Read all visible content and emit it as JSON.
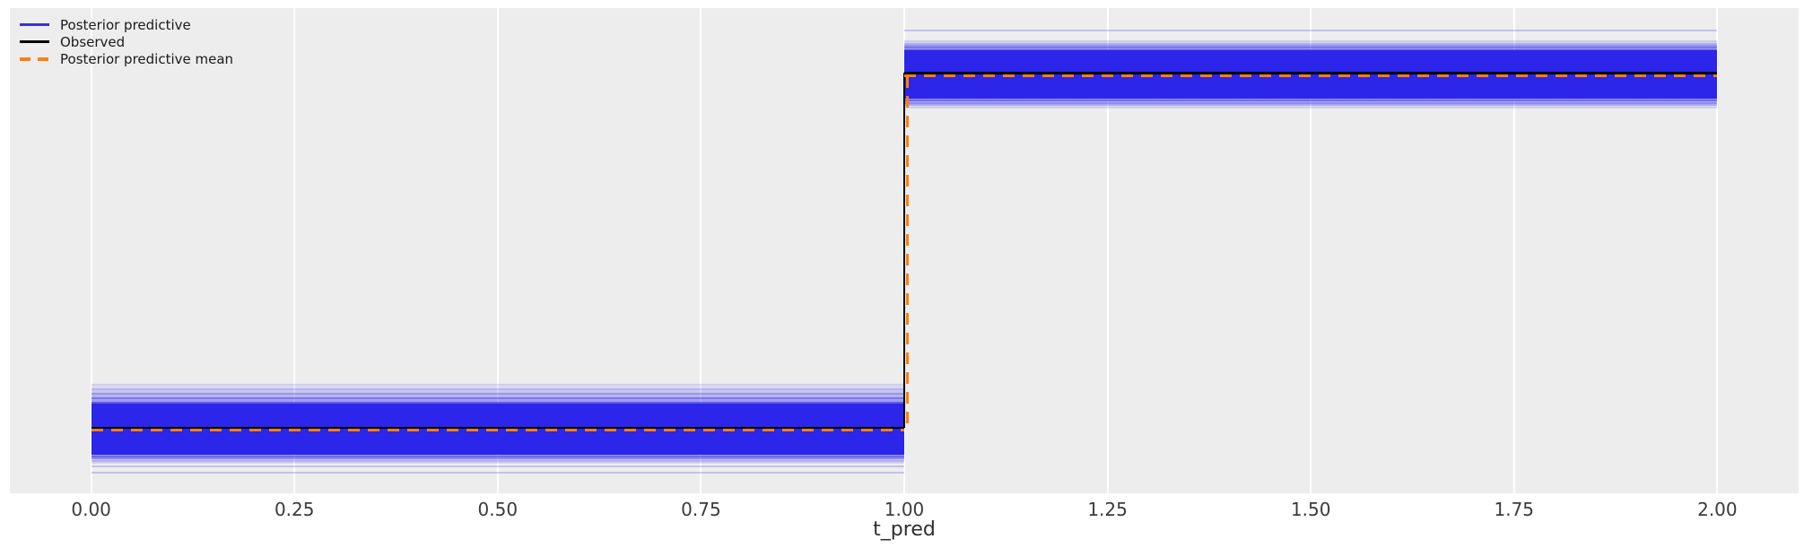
{
  "figure": {
    "background_color": "#ffffff",
    "plot_background_color": "#ededed",
    "grid_color": "#ffffff"
  },
  "legend": {
    "items": [
      {
        "label": "Posterior predictive",
        "color": "#3534cf",
        "style": "solid"
      },
      {
        "label": "Observed",
        "color": "#000000",
        "style": "solid"
      },
      {
        "label": "Posterior predictive mean",
        "color": "#ff7f0e",
        "style": "dashed"
      }
    ]
  },
  "chart_data": {
    "type": "line",
    "subtype": "step-function-with-posterior-predictive-sample-ensemble",
    "title": "",
    "xlabel": "t_pred",
    "ylabel": "",
    "xlim": [
      -0.1,
      2.1
    ],
    "ylim": [
      0,
      1
    ],
    "x_tick_values": [
      0.0,
      0.25,
      0.5,
      0.75,
      1.0,
      1.25,
      1.5,
      1.75,
      2.0
    ],
    "x_tick_labels": [
      "0.00",
      "0.25",
      "0.50",
      "0.75",
      "1.00",
      "1.25",
      "1.50",
      "1.75",
      "2.00"
    ],
    "y_tick_labels": [],
    "grid": "vertical-only",
    "legend_position": "upper-left",
    "step_at_x": 1.0,
    "note_y_units": "y axis unlabeled; values given as axes-fraction from bottom",
    "series": [
      {
        "name": "Posterior predictive",
        "style": "ensemble-band",
        "color": "#2b26ea",
        "segments": [
          {
            "x0": 0.0,
            "x1": 1.0,
            "center": 0.135,
            "core": [
              0.0795,
              0.1848
            ],
            "fade": [
              0.061,
              0.2292
            ],
            "outliers": [
              0.0554,
              0.0416
            ]
          },
          {
            "x0": 1.0,
            "x1": 2.0,
            "center": 0.865,
            "core": [
              0.8133,
              0.9131
            ],
            "fade": [
              0.793,
              0.9353
            ],
            "outliers": [
              0.9538
            ]
          }
        ]
      },
      {
        "name": "Observed",
        "style": "solid-step",
        "color": "#000000",
        "x": [
          0.0,
          1.0,
          2.0
        ],
        "levels": [
          0.1349,
          0.866
        ]
      },
      {
        "name": "Posterior predictive mean",
        "style": "dashed-step",
        "color": "#ff7f0e",
        "x": [
          0.0,
          1.0,
          2.0
        ],
        "levels": [
          0.1294,
          0.8604
        ]
      }
    ]
  }
}
